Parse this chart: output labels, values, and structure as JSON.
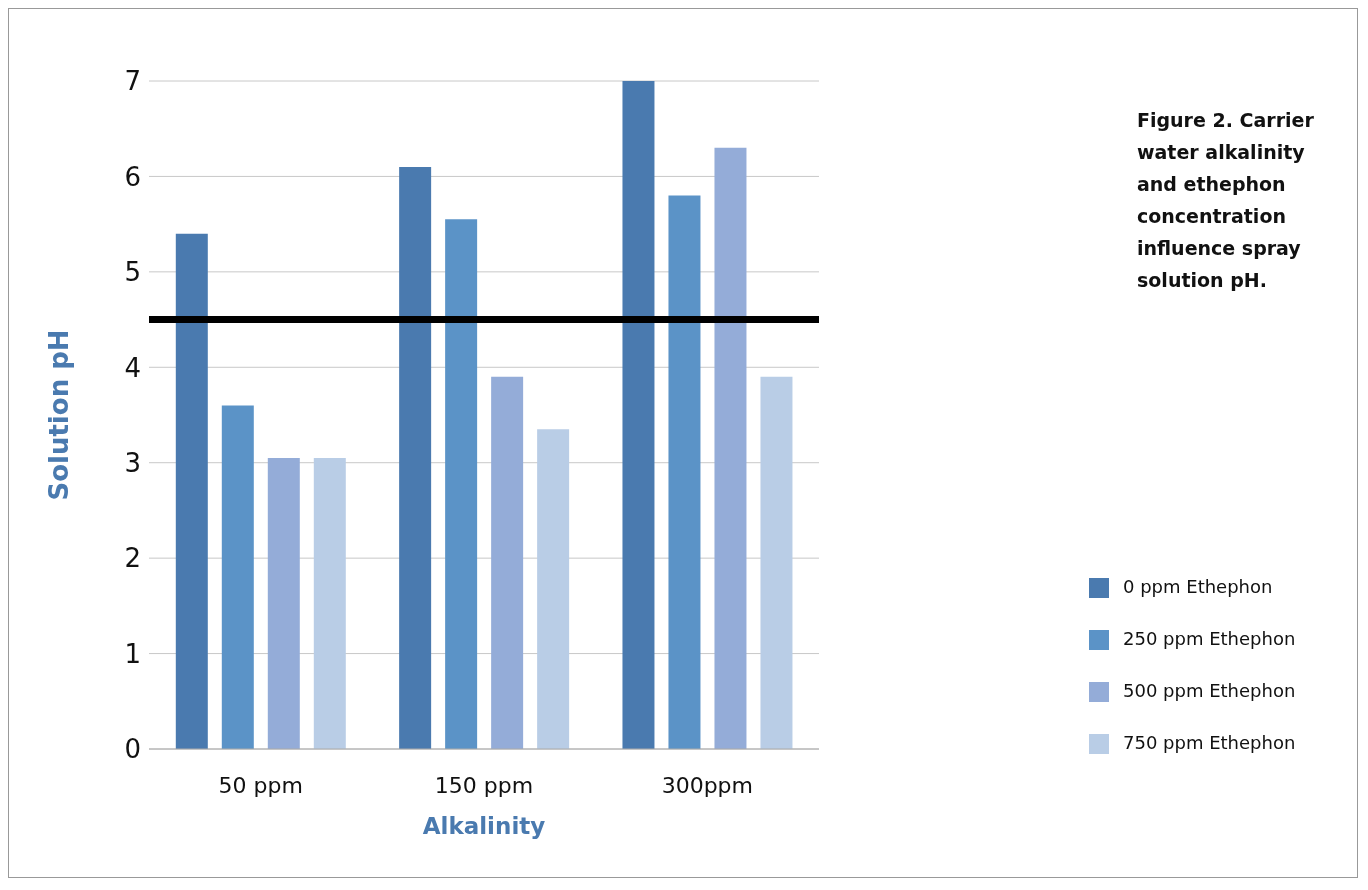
{
  "chart_data": {
    "type": "bar",
    "title": "Figure 2. Carrier water alkalinity and ethephon concentration influence spray solution pH.",
    "xlabel": "Alkalinity",
    "ylabel": "Solution pH",
    "categories": [
      "50 ppm",
      "150 ppm",
      "300ppm"
    ],
    "series": [
      {
        "name": "0 ppm Ethephon",
        "color": "#4a7aaf",
        "values": [
          5.4,
          6.1,
          7.0
        ]
      },
      {
        "name": "250 ppm Ethephon",
        "color": "#5b93c7",
        "values": [
          3.6,
          5.55,
          5.8
        ]
      },
      {
        "name": "500 ppm Ethephon",
        "color": "#94acd8",
        "values": [
          3.05,
          3.9,
          6.3
        ]
      },
      {
        "name": "750 ppm Ethephon",
        "color": "#b9cde6",
        "values": [
          3.05,
          3.35,
          3.9
        ]
      }
    ],
    "ylim": [
      0,
      7
    ],
    "yticks": [
      0,
      1,
      2,
      3,
      4,
      5,
      6,
      7
    ],
    "grid": "y",
    "legend": "right",
    "ref_lines": [
      {
        "axis": "y",
        "value": 4.5,
        "color": "#000000"
      }
    ]
  }
}
